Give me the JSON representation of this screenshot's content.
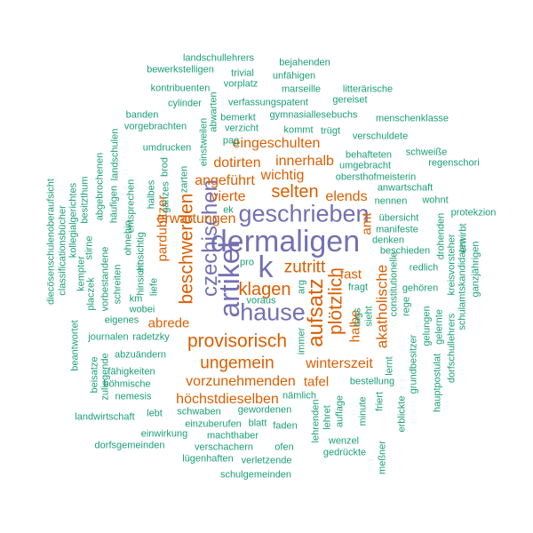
{
  "colors": {
    "large": "#7570b3",
    "medium": "#d95f02",
    "small": "#1b9e77"
  },
  "words": [
    {
      "text": "dermaligen",
      "size": 30,
      "tier": "large",
      "vertical": false
    },
    {
      "text": "k",
      "size": 30,
      "tier": "large",
      "vertical": false
    },
    {
      "text": "artikel",
      "size": 28,
      "tier": "large",
      "vertical": true
    },
    {
      "text": "geschrieben",
      "size": 24,
      "tier": "large",
      "vertical": false
    },
    {
      "text": "hause",
      "size": 24,
      "tier": "large",
      "vertical": false
    },
    {
      "text": "czechischen",
      "size": 22,
      "tier": "large",
      "vertical": true
    },
    {
      "text": "aufsatz",
      "size": 22,
      "tier": "medium",
      "vertical": true
    },
    {
      "text": "provisorisch",
      "size": 20,
      "tier": "medium",
      "vertical": false
    },
    {
      "text": "plötzlich",
      "size": 20,
      "tier": "medium",
      "vertical": true
    },
    {
      "text": "beschwerden",
      "size": 20,
      "tier": "medium",
      "vertical": true
    },
    {
      "text": "klagen",
      "size": 19,
      "tier": "medium",
      "vertical": false
    },
    {
      "text": "selten",
      "size": 19,
      "tier": "medium",
      "vertical": false
    },
    {
      "text": "zutritt",
      "size": 18,
      "tier": "medium",
      "vertical": false
    },
    {
      "text": "ungemein",
      "size": 18,
      "tier": "medium",
      "vertical": false
    },
    {
      "text": "akatholische",
      "size": 16,
      "tier": "medium",
      "vertical": true
    },
    {
      "text": "innerhalb",
      "size": 15,
      "tier": "medium",
      "vertical": false
    },
    {
      "text": "vorzunehmenden",
      "size": 15,
      "tier": "medium",
      "vertical": false
    },
    {
      "text": "höchstdieselben",
      "size": 15,
      "tier": "medium",
      "vertical": false
    },
    {
      "text": "eingeschulten",
      "size": 15,
      "tier": "medium",
      "vertical": false
    },
    {
      "text": "dotirten",
      "size": 15,
      "tier": "medium",
      "vertical": false
    },
    {
      "text": "elends",
      "size": 15,
      "tier": "medium",
      "vertical": false
    },
    {
      "text": "wichtig",
      "size": 15,
      "tier": "medium",
      "vertical": false
    },
    {
      "text": "angeführt",
      "size": 15,
      "tier": "medium",
      "vertical": false
    },
    {
      "text": "vierte",
      "size": 15,
      "tier": "medium",
      "vertical": false
    },
    {
      "text": "erwartungen",
      "size": 15,
      "tier": "medium",
      "vertical": false
    },
    {
      "text": "winterszeit",
      "size": 15,
      "tier": "medium",
      "vertical": false
    },
    {
      "text": "abrede",
      "size": 14,
      "tier": "medium",
      "vertical": false
    },
    {
      "text": "pardubitzer",
      "size": 14,
      "tier": "medium",
      "vertical": true
    },
    {
      "text": "tafel",
      "size": 14,
      "tier": "medium",
      "vertical": false
    },
    {
      "text": "halbe",
      "size": 14,
      "tier": "medium",
      "vertical": true
    },
    {
      "text": "amt",
      "size": 14,
      "tier": "medium",
      "vertical": true
    },
    {
      "text": "fast",
      "size": 14,
      "tier": "medium",
      "vertical": false
    },
    {
      "text": "landschullehrers",
      "size": 11,
      "tier": "small",
      "vertical": false
    },
    {
      "text": "bewerkstelligen",
      "size": 11,
      "tier": "small",
      "vertical": false
    },
    {
      "text": "trivial",
      "size": 11,
      "tier": "small",
      "vertical": false
    },
    {
      "text": "bejahenden",
      "size": 11,
      "tier": "small",
      "vertical": false
    },
    {
      "text": "unfähigen",
      "size": 11,
      "tier": "small",
      "vertical": false
    },
    {
      "text": "vorplatz",
      "size": 11,
      "tier": "small",
      "vertical": false
    },
    {
      "text": "kontribuenten",
      "size": 11,
      "tier": "small",
      "vertical": false
    },
    {
      "text": "marseille",
      "size": 11,
      "tier": "small",
      "vertical": false
    },
    {
      "text": "litterärische",
      "size": 11,
      "tier": "small",
      "vertical": false
    },
    {
      "text": "cylinder",
      "size": 11,
      "tier": "small",
      "vertical": false
    },
    {
      "text": "verfassungspatent",
      "size": 11,
      "tier": "small",
      "vertical": false
    },
    {
      "text": "gereiset",
      "size": 11,
      "tier": "small",
      "vertical": false
    },
    {
      "text": "banden",
      "size": 11,
      "tier": "small",
      "vertical": false
    },
    {
      "text": "bemerkt",
      "size": 11,
      "tier": "small",
      "vertical": false
    },
    {
      "text": "gymnasiallesebuchs",
      "size": 11,
      "tier": "small",
      "vertical": false
    },
    {
      "text": "menschenklasse",
      "size": 11,
      "tier": "small",
      "vertical": false
    },
    {
      "text": "vorgebrachten",
      "size": 11,
      "tier": "small",
      "vertical": false
    },
    {
      "text": "verzicht",
      "size": 11,
      "tier": "small",
      "vertical": false
    },
    {
      "text": "kommt",
      "size": 11,
      "tier": "small",
      "vertical": false
    },
    {
      "text": "trügt",
      "size": 11,
      "tier": "small",
      "vertical": false
    },
    {
      "text": "verschuldete",
      "size": 11,
      "tier": "small",
      "vertical": false
    },
    {
      "text": "pag",
      "size": 11,
      "tier": "small",
      "vertical": false
    },
    {
      "text": "umdrucken",
      "size": 11,
      "tier": "small",
      "vertical": false
    },
    {
      "text": "behafteten",
      "size": 11,
      "tier": "small",
      "vertical": false
    },
    {
      "text": "schweiße",
      "size": 11,
      "tier": "small",
      "vertical": false
    },
    {
      "text": "umgebracht",
      "size": 11,
      "tier": "small",
      "vertical": false
    },
    {
      "text": "regenschori",
      "size": 11,
      "tier": "small",
      "vertical": false
    },
    {
      "text": "obersthofmeisterin",
      "size": 11,
      "tier": "small",
      "vertical": false
    },
    {
      "text": "anwartschaft",
      "size": 11,
      "tier": "small",
      "vertical": false
    },
    {
      "text": "nennen",
      "size": 11,
      "tier": "small",
      "vertical": false
    },
    {
      "text": "wohnt",
      "size": 11,
      "tier": "small",
      "vertical": false
    },
    {
      "text": "ek",
      "size": 11,
      "tier": "small",
      "vertical": false
    },
    {
      "text": "übersicht",
      "size": 11,
      "tier": "small",
      "vertical": false
    },
    {
      "text": "protekzion",
      "size": 11,
      "tier": "small",
      "vertical": false
    },
    {
      "text": "manifeste",
      "size": 11,
      "tier": "small",
      "vertical": false
    },
    {
      "text": "denken",
      "size": 11,
      "tier": "small",
      "vertical": false
    },
    {
      "text": "beschieden",
      "size": 11,
      "tier": "small",
      "vertical": false
    },
    {
      "text": "pro",
      "size": 11,
      "tier": "small",
      "vertical": false
    },
    {
      "text": "redlich",
      "size": 11,
      "tier": "small",
      "vertical": false
    },
    {
      "text": "fragt",
      "size": 11,
      "tier": "small",
      "vertical": false
    },
    {
      "text": "gehören",
      "size": 11,
      "tier": "small",
      "vertical": false
    },
    {
      "text": "km",
      "size": 11,
      "tier": "small",
      "vertical": false
    },
    {
      "text": "wobei",
      "size": 11,
      "tier": "small",
      "vertical": false
    },
    {
      "text": "eigenes",
      "size": 11,
      "tier": "small",
      "vertical": false
    },
    {
      "text": "voraus",
      "size": 11,
      "tier": "small",
      "vertical": false
    },
    {
      "text": "journalen",
      "size": 11,
      "tier": "small",
      "vertical": false
    },
    {
      "text": "radetzky",
      "size": 11,
      "tier": "small",
      "vertical": false
    },
    {
      "text": "abzuändern",
      "size": 11,
      "tier": "small",
      "vertical": false
    },
    {
      "text": "fähigkeiten",
      "size": 11,
      "tier": "small",
      "vertical": false
    },
    {
      "text": "böhmische",
      "size": 11,
      "tier": "small",
      "vertical": false
    },
    {
      "text": "nemesis",
      "size": 11,
      "tier": "small",
      "vertical": false
    },
    {
      "text": "nämlich",
      "size": 11,
      "tier": "small",
      "vertical": false
    },
    {
      "text": "bestellung",
      "size": 11,
      "tier": "small",
      "vertical": false
    },
    {
      "text": "landwirtschaft",
      "size": 11,
      "tier": "small",
      "vertical": false
    },
    {
      "text": "lebt",
      "size": 11,
      "tier": "small",
      "vertical": false
    },
    {
      "text": "schwaben",
      "size": 11,
      "tier": "small",
      "vertical": false
    },
    {
      "text": "gewordenen",
      "size": 11,
      "tier": "small",
      "vertical": false
    },
    {
      "text": "einzuberufen",
      "size": 11,
      "tier": "small",
      "vertical": false
    },
    {
      "text": "blatt",
      "size": 11,
      "tier": "small",
      "vertical": false
    },
    {
      "text": "faden",
      "size": 11,
      "tier": "small",
      "vertical": false
    },
    {
      "text": "einwirkung",
      "size": 11,
      "tier": "small",
      "vertical": false
    },
    {
      "text": "machthaber",
      "size": 11,
      "tier": "small",
      "vertical": false
    },
    {
      "text": "dorfsgemeinden",
      "size": 11,
      "tier": "small",
      "vertical": false
    },
    {
      "text": "verschachern",
      "size": 11,
      "tier": "small",
      "vertical": false
    },
    {
      "text": "ofen",
      "size": 11,
      "tier": "small",
      "vertical": false
    },
    {
      "text": "wenzel",
      "size": 11,
      "tier": "small",
      "vertical": false
    },
    {
      "text": "gedrückte",
      "size": 11,
      "tier": "small",
      "vertical": false
    },
    {
      "text": "lügenhaften",
      "size": 11,
      "tier": "small",
      "vertical": false
    },
    {
      "text": "verletzende",
      "size": 11,
      "tier": "small",
      "vertical": false
    },
    {
      "text": "schulgemeinden",
      "size": 11,
      "tier": "small",
      "vertical": false
    },
    {
      "text": "abwarten",
      "size": 11,
      "tier": "small",
      "vertical": true
    },
    {
      "text": "einstweilen",
      "size": 11,
      "tier": "small",
      "vertical": true
    },
    {
      "text": "brod",
      "size": 11,
      "tier": "small",
      "vertical": true
    },
    {
      "text": "ganzes",
      "size": 11,
      "tier": "small",
      "vertical": true
    },
    {
      "text": "halbes",
      "size": 11,
      "tier": "small",
      "vertical": true
    },
    {
      "text": "zarten",
      "size": 11,
      "tier": "small",
      "vertical": true
    },
    {
      "text": "landschulen",
      "size": 11,
      "tier": "small",
      "vertical": true
    },
    {
      "text": "abgebrochenen",
      "size": 11,
      "tier": "small",
      "vertical": true
    },
    {
      "text": "häufigen",
      "size": 11,
      "tier": "small",
      "vertical": true
    },
    {
      "text": "entsprechen",
      "size": 11,
      "tier": "small",
      "vertical": true
    },
    {
      "text": "ohnehin",
      "size": 11,
      "tier": "small",
      "vertical": true
    },
    {
      "text": "einsichtig",
      "size": 11,
      "tier": "small",
      "vertical": true
    },
    {
      "text": "hinsicht",
      "size": 11,
      "tier": "small",
      "vertical": true
    },
    {
      "text": "liefe",
      "size": 11,
      "tier": "small",
      "vertical": true
    },
    {
      "text": "besitzthum",
      "size": 11,
      "tier": "small",
      "vertical": true
    },
    {
      "text": "kollegialgerichtes",
      "size": 11,
      "tier": "small",
      "vertical": true
    },
    {
      "text": "classificationsbücher",
      "size": 11,
      "tier": "small",
      "vertical": true
    },
    {
      "text": "diecösenschulenoberaufsicht",
      "size": 11,
      "tier": "small",
      "vertical": true
    },
    {
      "text": "kempter",
      "size": 11,
      "tier": "small",
      "vertical": true
    },
    {
      "text": "placzek",
      "size": 11,
      "tier": "small",
      "vertical": true
    },
    {
      "text": "stirne",
      "size": 11,
      "tier": "small",
      "vertical": true
    },
    {
      "text": "vorbestandene",
      "size": 11,
      "tier": "small",
      "vertical": true
    },
    {
      "text": "schreiten",
      "size": 11,
      "tier": "small",
      "vertical": true
    },
    {
      "text": "beantwortet",
      "size": 11,
      "tier": "small",
      "vertical": true
    },
    {
      "text": "beisatze",
      "size": 11,
      "tier": "small",
      "vertical": true
    },
    {
      "text": "zuliegende",
      "size": 11,
      "tier": "small",
      "vertical": true
    },
    {
      "text": "arg",
      "size": 11,
      "tier": "small",
      "vertical": true
    },
    {
      "text": "immer",
      "size": 11,
      "tier": "small",
      "vertical": true
    },
    {
      "text": "tags",
      "size": 11,
      "tier": "small",
      "vertical": true
    },
    {
      "text": "sieht",
      "size": 11,
      "tier": "small",
      "vertical": true
    },
    {
      "text": "constitutionelle",
      "size": 11,
      "tier": "small",
      "vertical": true
    },
    {
      "text": "rege",
      "size": 11,
      "tier": "small",
      "vertical": true
    },
    {
      "text": "lernt",
      "size": 11,
      "tier": "small",
      "vertical": true
    },
    {
      "text": "auflage",
      "size": 11,
      "tier": "small",
      "vertical": true
    },
    {
      "text": "lehret",
      "size": 11,
      "tier": "small",
      "vertical": true
    },
    {
      "text": "lehrenden",
      "size": 11,
      "tier": "small",
      "vertical": true
    },
    {
      "text": "minute",
      "size": 11,
      "tier": "small",
      "vertical": true
    },
    {
      "text": "friert",
      "size": 11,
      "tier": "small",
      "vertical": true
    },
    {
      "text": "meßner",
      "size": 11,
      "tier": "small",
      "vertical": true
    },
    {
      "text": "erblickte",
      "size": 11,
      "tier": "small",
      "vertical": true
    },
    {
      "text": "grundbesitzer",
      "size": 11,
      "tier": "small",
      "vertical": true
    },
    {
      "text": "gelungen",
      "size": 11,
      "tier": "small",
      "vertical": true
    },
    {
      "text": "hauptpostulat",
      "size": 11,
      "tier": "small",
      "vertical": true
    },
    {
      "text": "gelernte",
      "size": 11,
      "tier": "small",
      "vertical": true
    },
    {
      "text": "dorfschullehrers",
      "size": 11,
      "tier": "small",
      "vertical": true
    },
    {
      "text": "drohenden",
      "size": 11,
      "tier": "small",
      "vertical": true
    },
    {
      "text": "kreisvorsteher",
      "size": 11,
      "tier": "small",
      "vertical": true
    },
    {
      "text": "erwirbt",
      "size": 11,
      "tier": "small",
      "vertical": true
    },
    {
      "text": "schulamtskandidaten",
      "size": 11,
      "tier": "small",
      "vertical": true
    },
    {
      "text": "ganzjährigen",
      "size": 11,
      "tier": "small",
      "vertical": true
    }
  ]
}
